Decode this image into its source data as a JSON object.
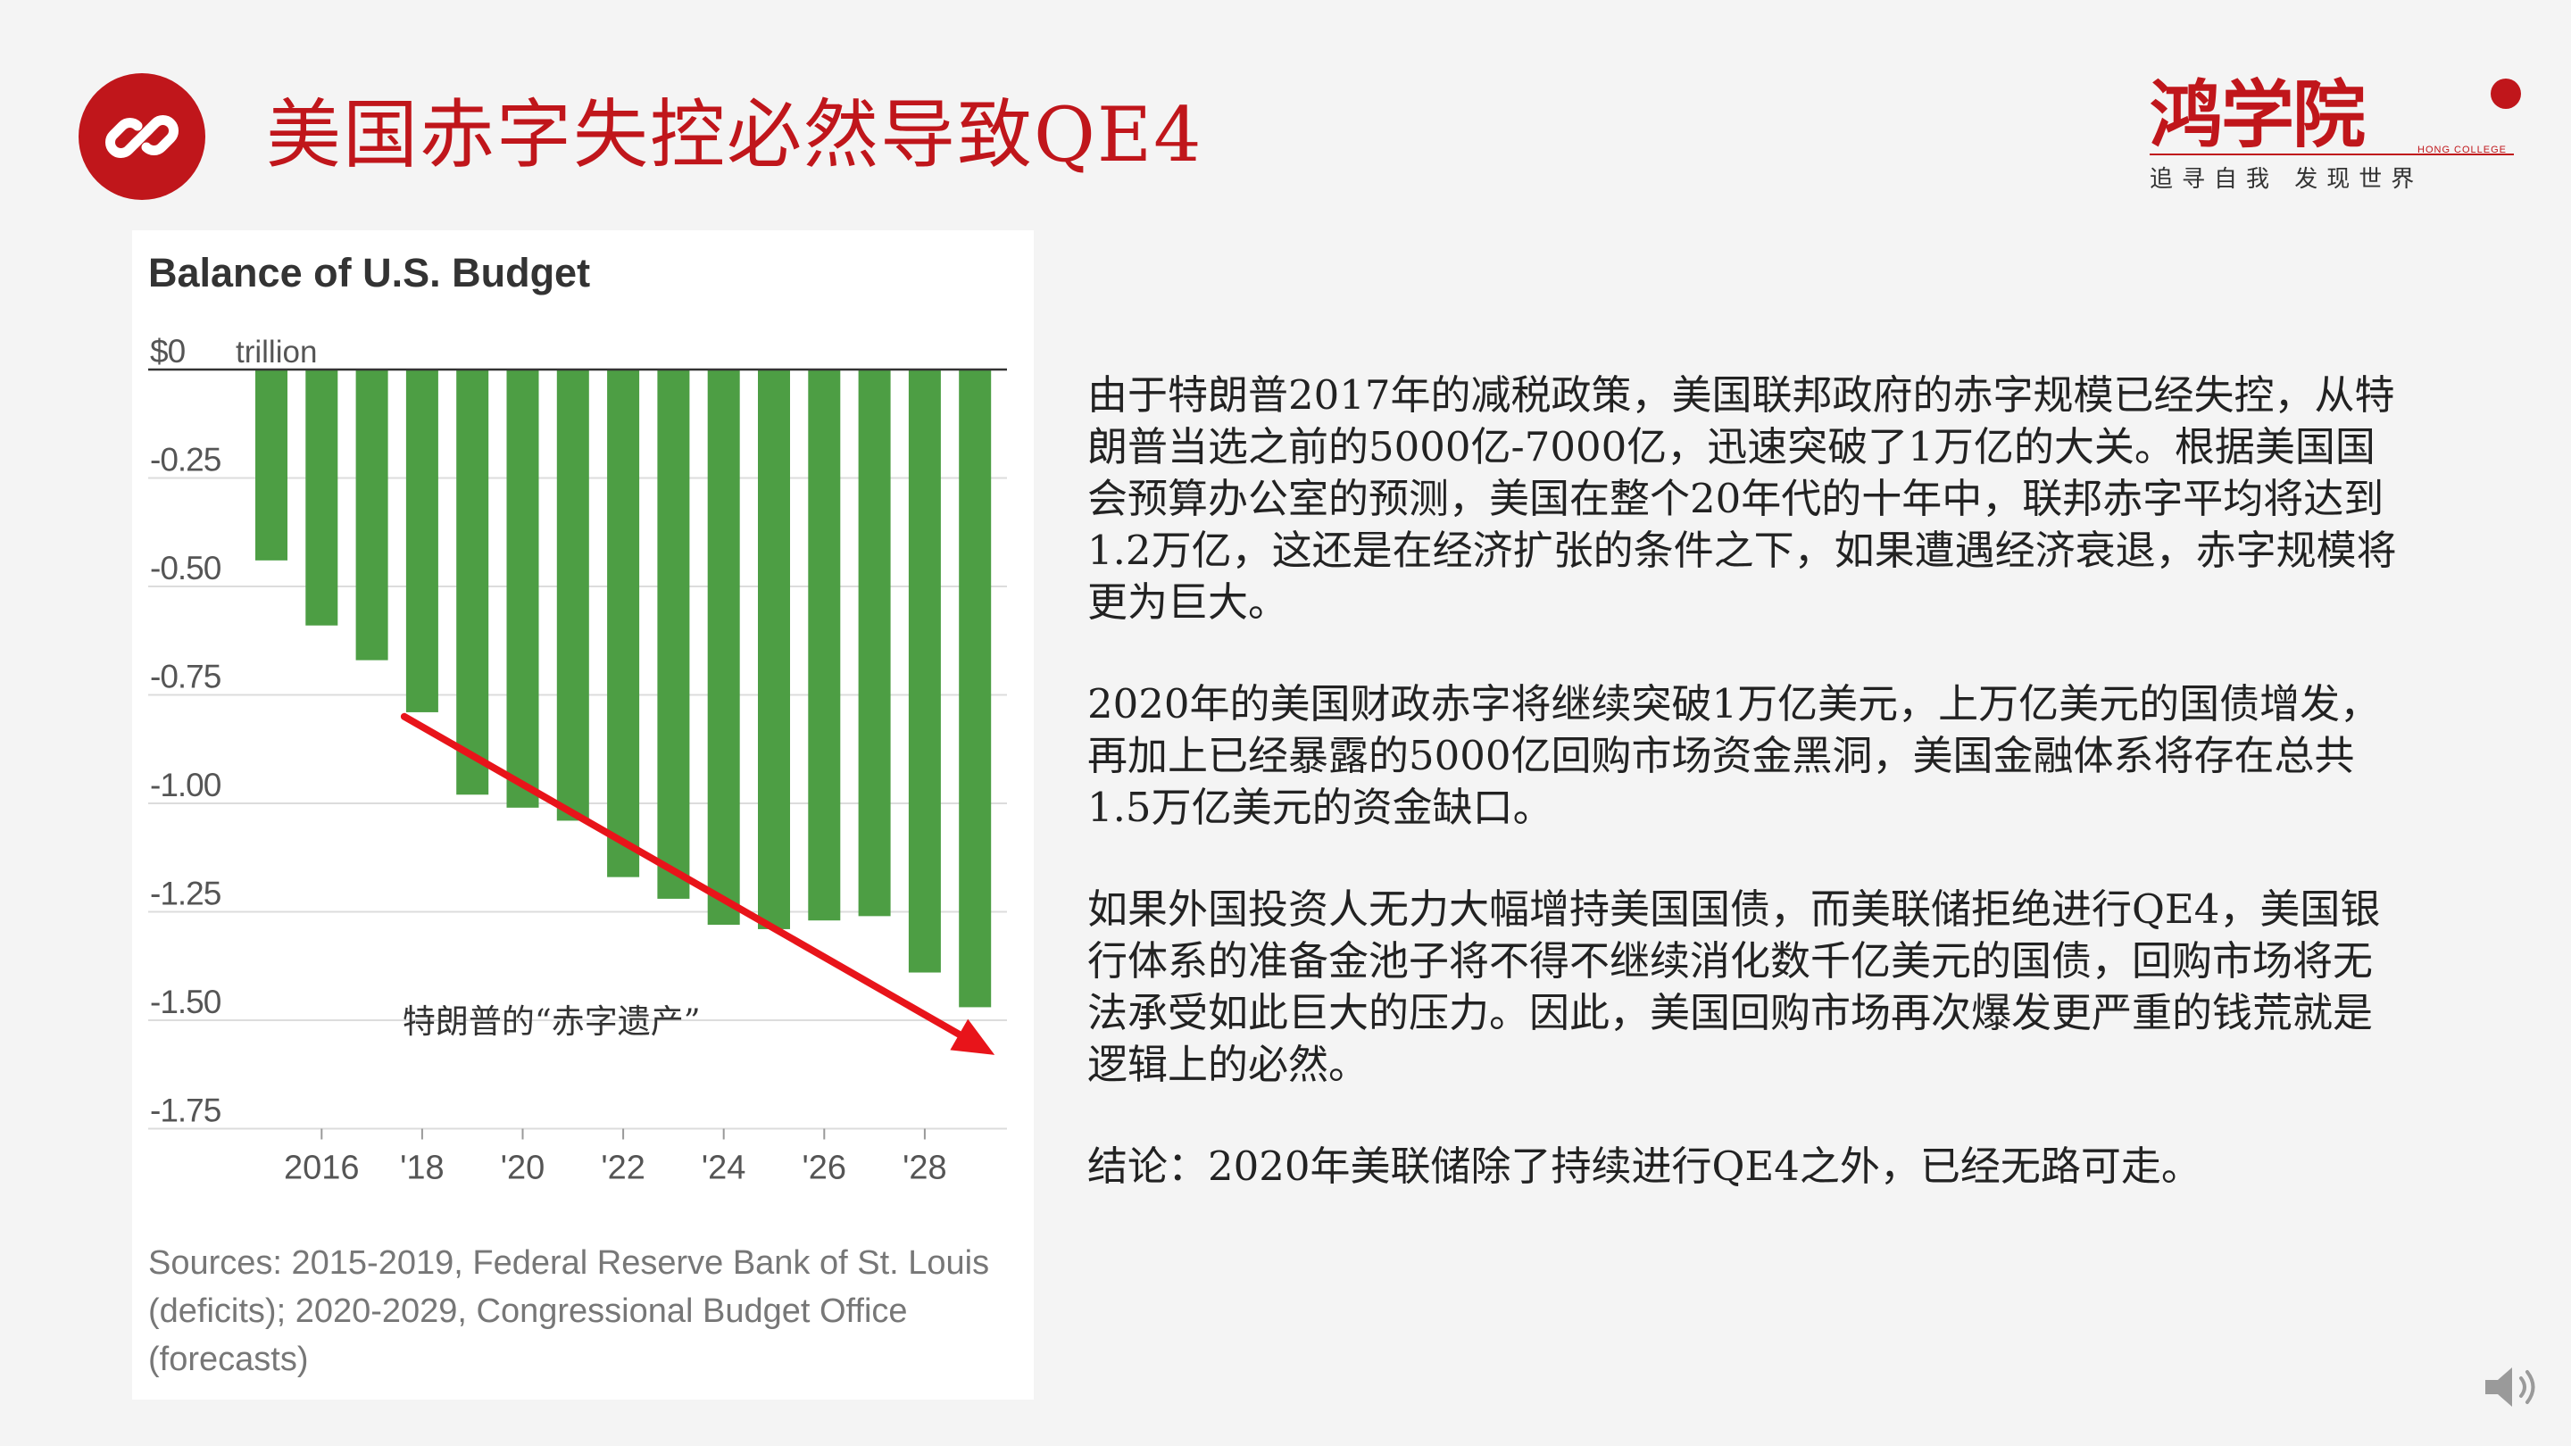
{
  "header": {
    "title": "美国赤字失控必然导致QE4"
  },
  "logo": {
    "name": "鸿学院",
    "english": "HONG COLLEGE",
    "tagline": "追寻自我  发现世界"
  },
  "chart_data": {
    "type": "bar",
    "title": "Balance of U.S. Budget",
    "unit_label": "trillion",
    "ylim": [
      -1.75,
      0
    ],
    "y_ticks": [
      {
        "value": 0,
        "label": "$0"
      },
      {
        "value": -0.25,
        "label": "-0.25"
      },
      {
        "value": -0.5,
        "label": "-0.50"
      },
      {
        "value": -0.75,
        "label": "-0.75"
      },
      {
        "value": -1.0,
        "label": "-1.00"
      },
      {
        "value": -1.25,
        "label": "-1.25"
      },
      {
        "value": -1.5,
        "label": "-1.50"
      },
      {
        "value": -1.75,
        "label": "-1.75"
      }
    ],
    "categories": [
      "2015",
      "2016",
      "2017",
      "2018",
      "2019",
      "2020",
      "2021",
      "2022",
      "2023",
      "2024",
      "2025",
      "2026",
      "2027",
      "2028",
      "2029"
    ],
    "x_tick_labels": [
      {
        "category": "2016",
        "label": "2016"
      },
      {
        "category": "2018",
        "label": "'18"
      },
      {
        "category": "2020",
        "label": "'20"
      },
      {
        "category": "2022",
        "label": "'22"
      },
      {
        "category": "2024",
        "label": "'24"
      },
      {
        "category": "2026",
        "label": "'26"
      },
      {
        "category": "2028",
        "label": "'28"
      }
    ],
    "values": [
      -0.44,
      -0.59,
      -0.67,
      -0.79,
      -0.98,
      -1.01,
      -1.04,
      -1.17,
      -1.22,
      -1.28,
      -1.29,
      -1.27,
      -1.26,
      -1.39,
      -1.47
    ],
    "bar_color": "#4d9e44",
    "trend_arrow_color": "#e8141a",
    "annotation": "特朗普的“赤字遗产”",
    "grid": true,
    "sources": "Sources: 2015-2019, Federal Reserve Bank of St. Louis (deficits); 2020-2029, Congressional Budget Office (forecasts)"
  },
  "paragraphs": [
    "由于特朗普2017年的减税政策，美国联邦政府的赤字规模已经失控，从特朗普当选之前的5000亿-7000亿，迅速突破了1万亿的大关。根据美国国会预算办公室的预测，美国在整个20年代的十年中，联邦赤字平均将达到1.2万亿，这还是在经济扩张的条件之下，如果遭遇经济衰退，赤字规模将更为巨大。",
    "2020年的美国财政赤字将继续突破1万亿美元，上万亿美元的国债增发，再加上已经暴露的5000亿回购市场资金黑洞，美国金融体系将存在总共1.5万亿美元的资金缺口。",
    "如果外国投资人无力大幅增持美国国债，而美联储拒绝进行QE4，美国银行体系的准备金池子将不得不继续消化数千亿美元的国债，回购市场将无法承受如此巨大的压力。因此，美国回购市场再次爆发更严重的钱荒就是逻辑上的必然。",
    "结论：2020年美联储除了持续进行QE4之外，已经无路可走。"
  ],
  "colors": {
    "accent_red": "#c0161b",
    "background": "#f4f4f4"
  },
  "icons": {
    "title_icon": "link-icon",
    "audio_icon": "speaker-icon"
  }
}
